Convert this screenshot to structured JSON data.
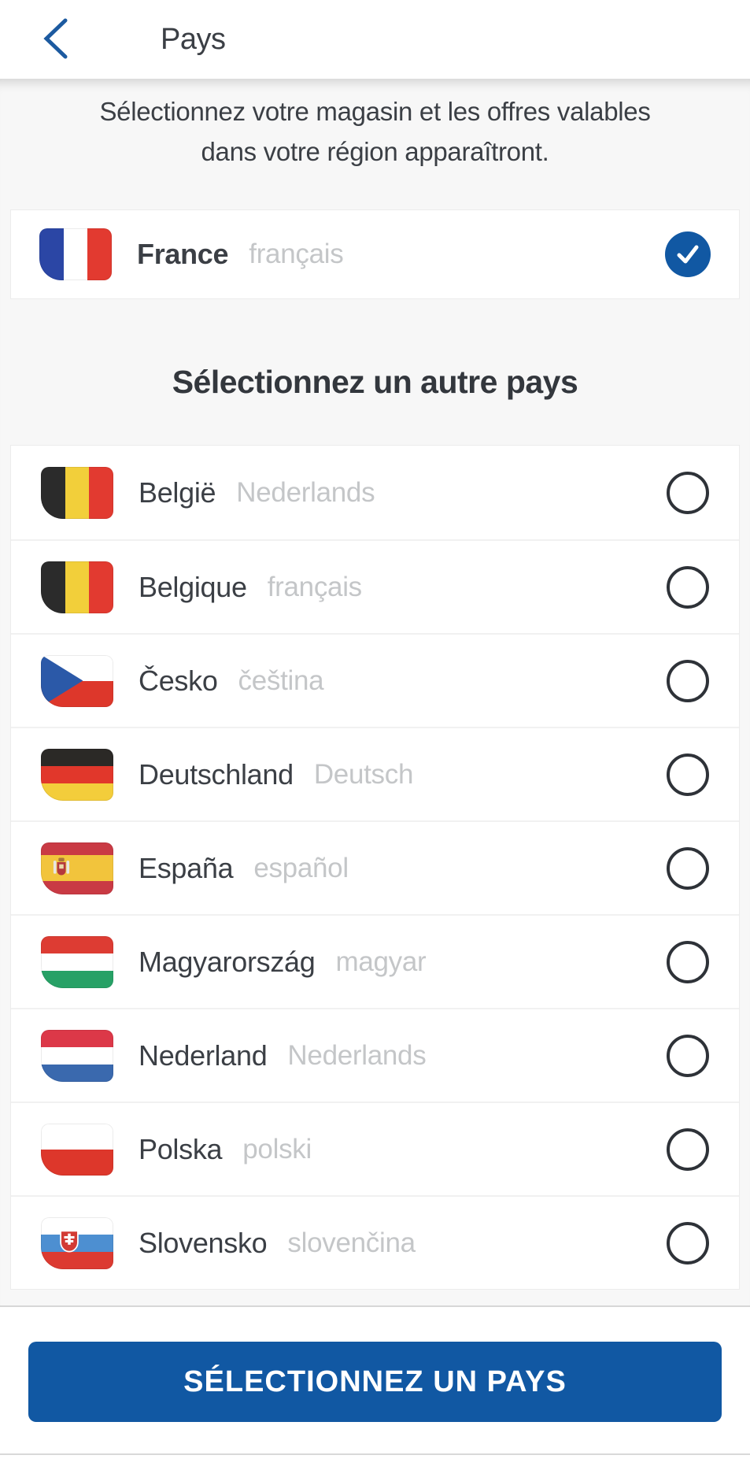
{
  "header": {
    "title": "Pays",
    "back_icon": "chevron-left"
  },
  "intro": {
    "text": "Sélectionnez votre magasin et les offres valables dans votre région apparaîtront."
  },
  "selected_country": {
    "name": "France",
    "language": "français",
    "flag": "fr",
    "icon": "flag-fr",
    "selected": true,
    "check_icon": "check-icon"
  },
  "section_title": "Sélectionnez un autre pays",
  "countries": [
    {
      "name": "België",
      "language": "Nederlands",
      "flag": "be",
      "icon": "flag-be",
      "selected": false
    },
    {
      "name": "Belgique",
      "language": "français",
      "flag": "be",
      "icon": "flag-be",
      "selected": false
    },
    {
      "name": "Česko",
      "language": "čeština",
      "flag": "cz",
      "icon": "flag-cz",
      "selected": false
    },
    {
      "name": "Deutschland",
      "language": "Deutsch",
      "flag": "de",
      "icon": "flag-de",
      "selected": false
    },
    {
      "name": "España",
      "language": "español",
      "flag": "es",
      "icon": "flag-es",
      "selected": false
    },
    {
      "name": "Magyarország",
      "language": "magyar",
      "flag": "hu",
      "icon": "flag-hu",
      "selected": false
    },
    {
      "name": "Nederland",
      "language": "Nederlands",
      "flag": "nl",
      "icon": "flag-nl",
      "selected": false
    },
    {
      "name": "Polska",
      "language": "polski",
      "flag": "pl",
      "icon": "flag-pl",
      "selected": false
    },
    {
      "name": "Slovensko",
      "language": "slovenčina",
      "flag": "sk",
      "icon": "flag-sk",
      "selected": false
    }
  ],
  "cta": {
    "label": "SÉLECTIONNEZ UN PAYS"
  },
  "colors": {
    "accent_blue": "#1158a3",
    "header_text": "#3b3f45",
    "secondary_text": "#c4c6c8",
    "page_bg": "#f7f7f7",
    "radio_outline": "#2e3238",
    "separator": "#f1f1f1",
    "bottom_bar_border": "#d7d7d7"
  },
  "flags": {
    "fr": {
      "type": "v",
      "colors": [
        "#2b46a5",
        "#ffffff",
        "#e23a30"
      ]
    },
    "be": {
      "type": "v",
      "colors": [
        "#2b2b2b",
        "#f2cf3a",
        "#e23a30"
      ]
    },
    "cz": {
      "type": "h",
      "colors": [
        "#ffffff",
        "#dd372b"
      ],
      "triangle": "#2b59a8"
    },
    "de": {
      "type": "h",
      "colors": [
        "#2b2926",
        "#e1372b",
        "#f3cd3b"
      ]
    },
    "es": {
      "type": "h",
      "colors": [
        "#c93a44",
        "#f2c43c",
        "#c93a44"
      ],
      "weights": [
        1,
        2,
        1
      ],
      "emblem": "spain"
    },
    "hu": {
      "type": "h",
      "colors": [
        "#dd3c33",
        "#ffffff",
        "#27a166"
      ]
    },
    "nl": {
      "type": "h",
      "colors": [
        "#dc3848",
        "#ffffff",
        "#3a69ae"
      ]
    },
    "pl": {
      "type": "h",
      "colors": [
        "#ffffff",
        "#dd372b"
      ]
    },
    "sk": {
      "type": "h",
      "colors": [
        "#ffffff",
        "#4d8fd1",
        "#dc3a31"
      ],
      "emblem": "slovakia"
    }
  }
}
